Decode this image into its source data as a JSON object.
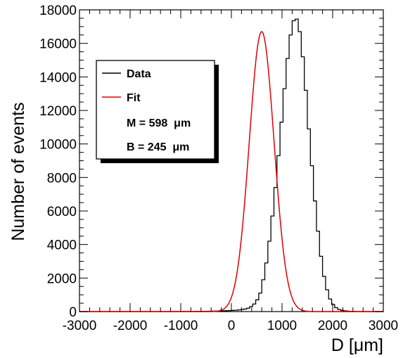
{
  "chart_data": {
    "type": "histogram",
    "xlabel": "D [μm]",
    "ylabel": "Number of events",
    "xlim": [
      -3000,
      3000
    ],
    "ylim": [
      0,
      18000
    ],
    "x_ticks": [
      -3000,
      -2000,
      -1000,
      0,
      1000,
      2000,
      3000
    ],
    "y_ticks": [
      0,
      2000,
      4000,
      6000,
      8000,
      10000,
      12000,
      14000,
      16000,
      18000
    ],
    "x_tick_labels": [
      "-3000",
      "-2000",
      "-1000",
      "0",
      "1000",
      "2000",
      "3000"
    ],
    "y_tick_labels": [
      "0",
      "2000",
      "4000",
      "6000",
      "8000",
      "10000",
      "12000",
      "14000",
      "16000",
      "18000"
    ],
    "grid": false,
    "legend": {
      "placement": "top-left",
      "entries": [
        {
          "label": "Data",
          "color": "#000000"
        },
        {
          "label": "Fit",
          "color": "#e00000"
        }
      ],
      "notes": [
        "M = 598  μm",
        "B = 245  μm"
      ]
    },
    "series": [
      {
        "name": "Data",
        "kind": "histogram",
        "color": "#000000",
        "bin_width": 60,
        "bin_start": -3000,
        "counts": [
          0,
          0,
          0,
          0,
          0,
          0,
          0,
          0,
          0,
          0,
          0,
          0,
          0,
          0,
          0,
          0,
          0,
          0,
          0,
          0,
          0,
          0,
          0,
          0,
          0,
          0,
          0,
          0,
          0,
          0,
          0,
          5,
          5,
          5,
          10,
          10,
          10,
          10,
          15,
          15,
          15,
          15,
          20,
          25,
          30,
          35,
          40,
          45,
          50,
          60,
          70,
          80,
          100,
          120,
          150,
          200,
          300,
          450,
          700,
          1100,
          1900,
          2900,
          4200,
          5700,
          7400,
          9300,
          11300,
          13300,
          15100,
          16500,
          17350,
          17450,
          16700,
          15200,
          13200,
          10900,
          8700,
          6600,
          4800,
          3300,
          2100,
          1300,
          750,
          420,
          230,
          120,
          70,
          40,
          25,
          15,
          10,
          5,
          5,
          0,
          0,
          0,
          0,
          0,
          0,
          0
        ]
      },
      {
        "name": "Fit",
        "kind": "curve",
        "color": "#e00000",
        "M": 598,
        "B": 245,
        "peak": 16700
      }
    ]
  }
}
